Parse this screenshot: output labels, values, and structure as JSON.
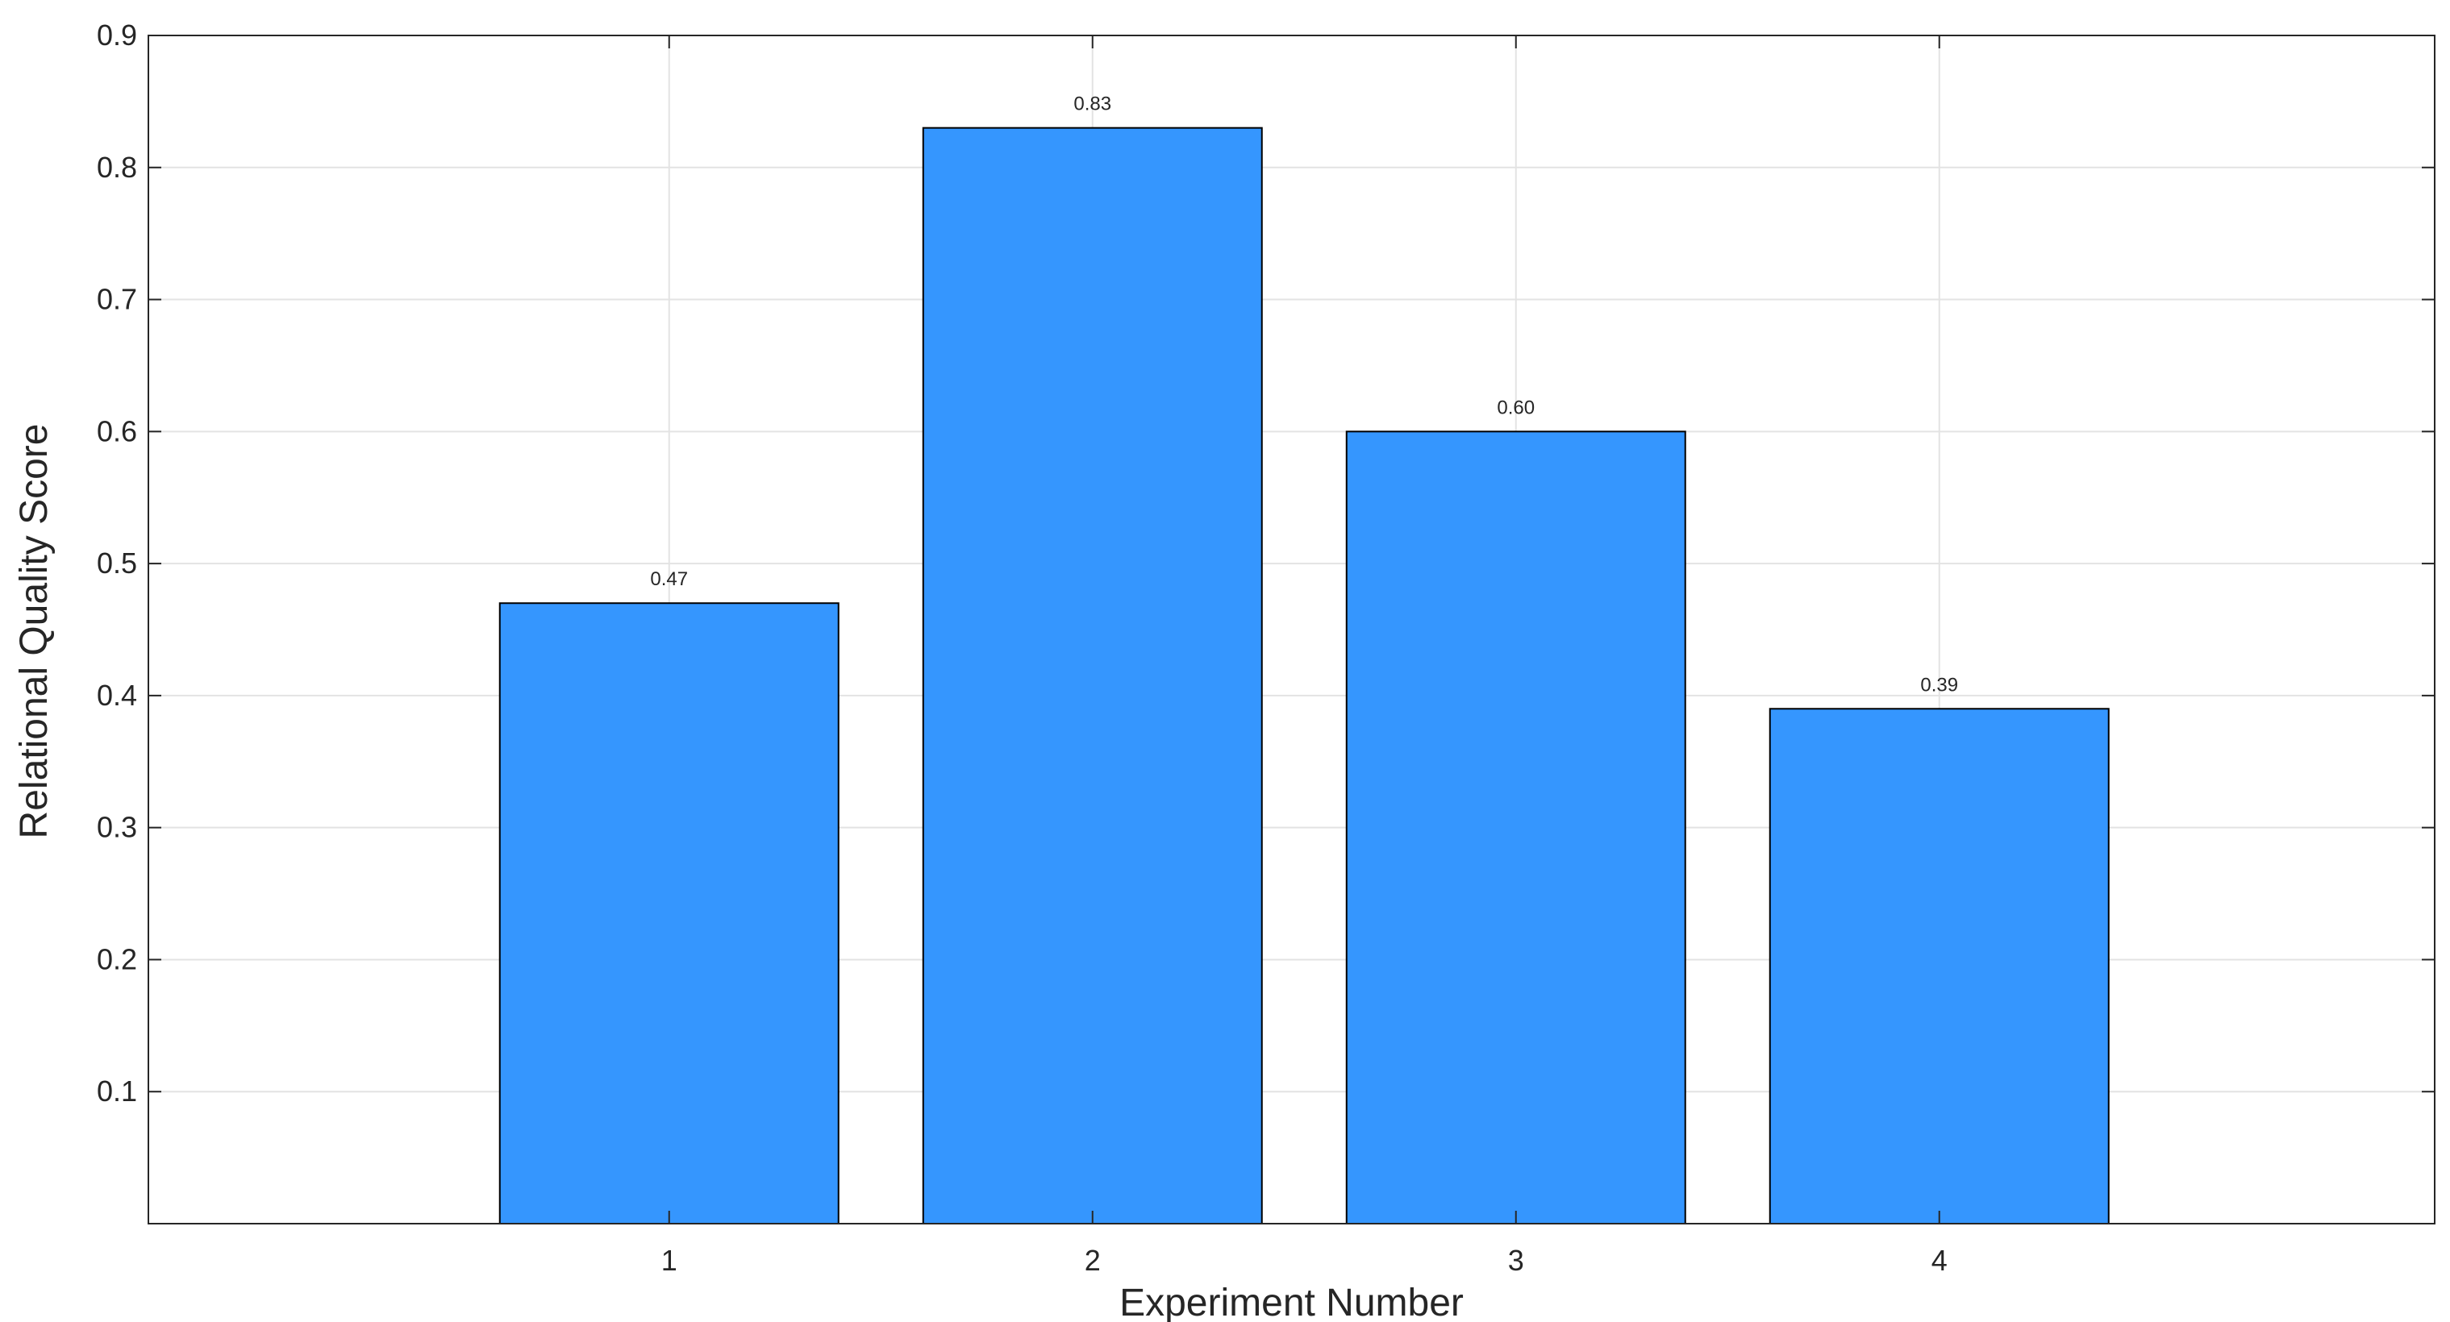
{
  "chart_data": {
    "type": "bar",
    "categories": [
      "1",
      "2",
      "3",
      "4"
    ],
    "values": [
      0.47,
      0.83,
      0.6,
      0.39
    ],
    "data_labels": [
      "0.47",
      "0.83",
      "0.60",
      "0.39"
    ],
    "title": "",
    "xlabel": "Experiment Number",
    "ylabel": "Relational Quality Score",
    "xlim": [
      -0.23,
      5.17
    ],
    "ylim": [
      0,
      0.9
    ],
    "yticks": [
      0.1,
      0.2,
      0.3,
      0.4,
      0.5,
      0.6,
      0.7,
      0.8,
      0.9
    ],
    "ytick_labels": [
      "0.1",
      "0.2",
      "0.3",
      "0.4",
      "0.5",
      "0.6",
      "0.7",
      "0.8",
      "0.9"
    ],
    "bar_width": 0.8,
    "bar_color": "#3596FE",
    "grid": true,
    "legend": "none"
  }
}
